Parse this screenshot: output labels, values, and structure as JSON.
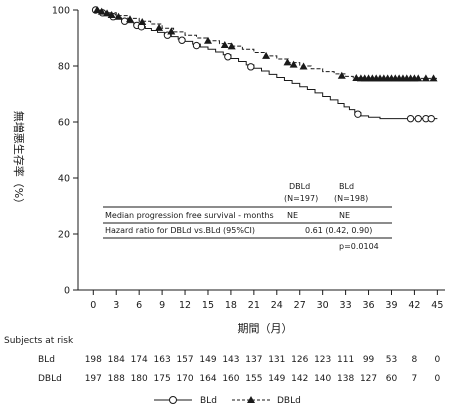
{
  "chart_data": {
    "type": "line",
    "subtype": "kaplan-meier",
    "ylabel": "無増悪生存率（%）",
    "xlabel": "期間（月）",
    "xlim": [
      -2,
      46
    ],
    "ylim": [
      0,
      100
    ],
    "x_ticks": [
      "0",
      "3",
      "6",
      "9",
      "12",
      "15",
      "18",
      "21",
      "24",
      "27",
      "30",
      "33",
      "36",
      "39",
      "42",
      "45"
    ],
    "y_ticks": [
      "0",
      "20",
      "40",
      "60",
      "80",
      "100"
    ],
    "series": [
      {
        "name": "BLd",
        "line_style": "solid",
        "marker": "open-circle",
        "color": "#1a1a1a",
        "steps": [
          [
            0,
            100
          ],
          [
            0.8,
            99.3
          ],
          [
            1.5,
            98.6
          ],
          [
            2.2,
            97.9
          ],
          [
            3,
            97.2
          ],
          [
            3.7,
            96.5
          ],
          [
            4.5,
            95.5
          ],
          [
            5.3,
            94.8
          ],
          [
            6,
            94.1
          ],
          [
            6.8,
            93.4
          ],
          [
            7.6,
            92.7
          ],
          [
            8.4,
            92
          ],
          [
            9.3,
            91.3
          ],
          [
            10.2,
            90.5
          ],
          [
            11.1,
            89.6
          ],
          [
            12,
            88.8
          ],
          [
            13,
            87.8
          ],
          [
            14,
            86.8
          ],
          [
            15,
            86
          ],
          [
            16,
            85
          ],
          [
            17,
            84
          ],
          [
            18,
            82.7
          ],
          [
            19,
            81.6
          ],
          [
            20,
            80.4
          ],
          [
            21,
            79.2
          ],
          [
            22,
            78.2
          ],
          [
            23,
            77
          ],
          [
            24,
            75.9
          ],
          [
            25,
            74.8
          ],
          [
            26,
            73.8
          ],
          [
            27,
            72.6
          ],
          [
            28,
            71.6
          ],
          [
            29,
            70.4
          ],
          [
            30,
            69.1
          ],
          [
            31,
            67.9
          ],
          [
            32,
            66.6
          ],
          [
            32.8,
            65.4
          ],
          [
            33.5,
            64.4
          ],
          [
            34.2,
            63.3
          ],
          [
            35,
            62.2
          ],
          [
            36,
            61.7
          ],
          [
            37.5,
            61.2
          ],
          [
            45,
            61.2
          ]
        ],
        "markers": [
          [
            0.3,
            100
          ],
          [
            1.2,
            99
          ],
          [
            2.6,
            97.6
          ],
          [
            4.1,
            96
          ],
          [
            5.7,
            94.5
          ],
          [
            6.3,
            94
          ],
          [
            9.7,
            91
          ],
          [
            11.6,
            89.2
          ],
          [
            13.5,
            87.3
          ],
          [
            17.6,
            83.3
          ],
          [
            20.6,
            79.7
          ],
          [
            34.6,
            62.8
          ],
          [
            41.5,
            61.2
          ],
          [
            42.5,
            61.2
          ],
          [
            43.5,
            61.2
          ],
          [
            44.2,
            61.2
          ]
        ]
      },
      {
        "name": "DBLd",
        "line_style": "dashed",
        "marker": "filled-triangle",
        "color": "#1a1a1a",
        "steps": [
          [
            0,
            100
          ],
          [
            1.5,
            99
          ],
          [
            3,
            98
          ],
          [
            4.5,
            97
          ],
          [
            6,
            96
          ],
          [
            7.5,
            95
          ],
          [
            9,
            93.5
          ],
          [
            10.5,
            92.2
          ],
          [
            12,
            91
          ],
          [
            13.5,
            90
          ],
          [
            15,
            89
          ],
          [
            16.5,
            88
          ],
          [
            18,
            87.1
          ],
          [
            19.5,
            86
          ],
          [
            21,
            84.8
          ],
          [
            22.5,
            83.6
          ],
          [
            24,
            82.5
          ],
          [
            25.5,
            81.2
          ],
          [
            27,
            80
          ],
          [
            28.5,
            79
          ],
          [
            30,
            78
          ],
          [
            31.5,
            77.2
          ],
          [
            33,
            76.3
          ],
          [
            34,
            75.8
          ],
          [
            36,
            75.6
          ],
          [
            45,
            75.6
          ]
        ],
        "markers": [
          [
            0.5,
            100
          ],
          [
            1.1,
            99.4
          ],
          [
            1.8,
            98.8
          ],
          [
            2.4,
            98.2
          ],
          [
            3.3,
            97.6
          ],
          [
            4.8,
            96.7
          ],
          [
            6.4,
            95.7
          ],
          [
            8.6,
            93.6
          ],
          [
            10.2,
            92.3
          ],
          [
            15,
            89
          ],
          [
            17.2,
            87.5
          ],
          [
            18.1,
            87
          ],
          [
            22.6,
            83.6
          ],
          [
            25.4,
            81.3
          ],
          [
            26.2,
            80.5
          ],
          [
            27.5,
            79.8
          ],
          [
            32.5,
            76.5
          ],
          [
            34.4,
            75.7
          ],
          [
            35,
            75.6
          ],
          [
            35.5,
            75.6
          ],
          [
            36,
            75.6
          ],
          [
            36.5,
            75.6
          ],
          [
            37,
            75.6
          ],
          [
            37.5,
            75.6
          ],
          [
            38,
            75.6
          ],
          [
            38.5,
            75.6
          ],
          [
            39,
            75.6
          ],
          [
            39.5,
            75.6
          ],
          [
            40,
            75.6
          ],
          [
            40.5,
            75.6
          ],
          [
            41,
            75.6
          ],
          [
            41.5,
            75.6
          ],
          [
            42,
            75.6
          ],
          [
            42.5,
            75.6
          ],
          [
            43.5,
            75.6
          ],
          [
            44.5,
            75.6
          ]
        ]
      }
    ],
    "stats_table": {
      "col_headers": [
        {
          "name": "DBLd",
          "n": "(N=197)"
        },
        {
          "name": "BLd",
          "n": "(N=198)"
        }
      ],
      "rows": [
        {
          "label": "Median progression free survival - months",
          "values": [
            "NE",
            "NE"
          ]
        },
        {
          "label": "Hazard ratio for DBLd vs.BLd (95%CI)",
          "value": "0.61 (0.42, 0.90)"
        }
      ],
      "p_value": "p=0.0104"
    },
    "risk_table": {
      "title": "Subjects at risk",
      "rows": [
        {
          "name": "BLd",
          "values": [
            "198",
            "184",
            "174",
            "163",
            "157",
            "149",
            "143",
            "137",
            "131",
            "126",
            "123",
            "111",
            "99",
            "53",
            "8",
            "0"
          ]
        },
        {
          "name": "DBLd",
          "values": [
            "197",
            "188",
            "180",
            "175",
            "170",
            "164",
            "160",
            "155",
            "149",
            "142",
            "140",
            "138",
            "127",
            "60",
            "7",
            "0"
          ]
        }
      ]
    },
    "legend": {
      "position": "bottom-center",
      "entries": [
        "BLd",
        "DBLd"
      ]
    }
  }
}
